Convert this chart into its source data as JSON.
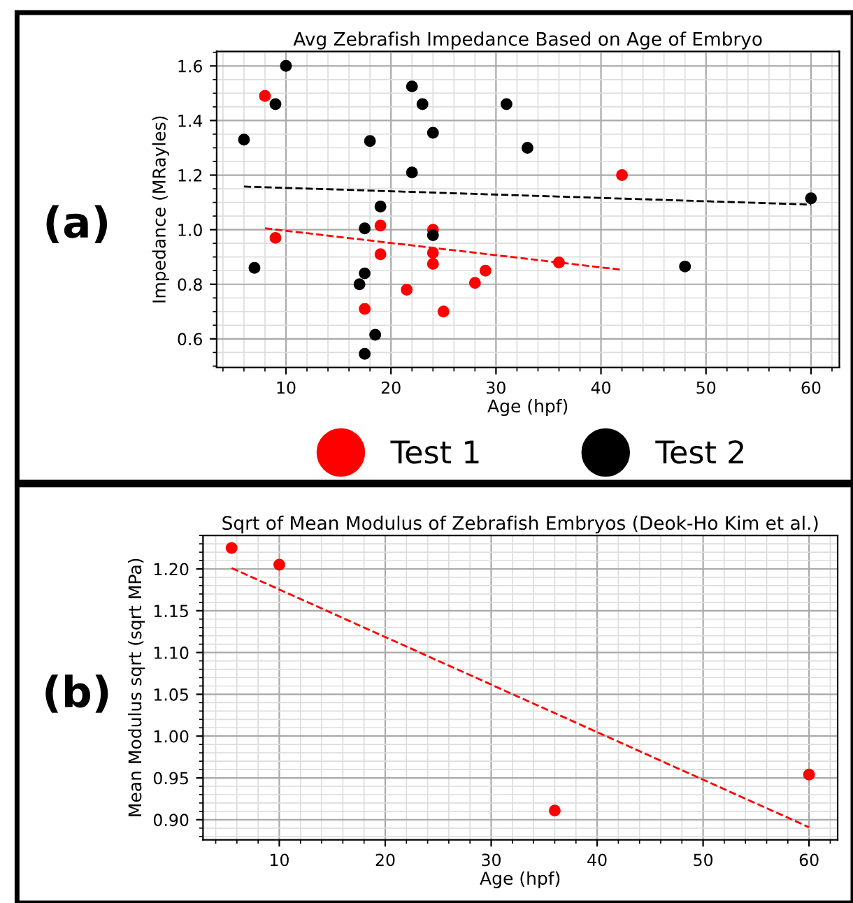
{
  "chart_data": [
    {
      "type": "scatter",
      "title": "Avg Zebrafish Impedance Based on Age of Embryo",
      "xlabel": "Age (hpf)",
      "ylabel": "Impedance (MRayles)",
      "annotations": [
        "(a)"
      ],
      "xlim": [
        3.4,
        62.7
      ],
      "ylim": [
        0.495,
        1.653
      ],
      "xticks": [
        10,
        20,
        30,
        40,
        50,
        60
      ],
      "yticks": [
        0.6,
        0.8,
        {
          "value": 1.0,
          "label": "1.0"
        },
        1.2,
        1.4,
        1.6
      ],
      "grid": true,
      "legend": "bottom",
      "series": [
        {
          "name": "Test 1",
          "color": "#ff0000",
          "marker": "circle",
          "x": [
            8,
            9,
            17.5,
            19,
            19,
            21.5,
            24,
            24,
            24,
            25,
            28,
            29,
            36,
            42
          ],
          "values": [
            1.49,
            0.97,
            0.71,
            1.015,
            0.91,
            0.78,
            1.0,
            0.915,
            0.875,
            0.7,
            0.805,
            0.85,
            0.88,
            1.2
          ]
        },
        {
          "name": "Test 2",
          "color": "#000000",
          "marker": "circle",
          "x": [
            6,
            7,
            9,
            10,
            17,
            17.5,
            17.5,
            17.5,
            18,
            18.5,
            19,
            22,
            22,
            23,
            24,
            24,
            31,
            33,
            48,
            60
          ],
          "values": [
            1.33,
            0.86,
            1.46,
            1.6,
            0.8,
            1.005,
            0.84,
            0.545,
            1.325,
            0.615,
            1.085,
            1.525,
            1.21,
            1.46,
            1.355,
            0.98,
            1.46,
            1.3,
            0.865,
            1.115
          ]
        },
        {
          "type": "line",
          "color": "#ff0000",
          "line_style": "dashed",
          "x": [
            8,
            42
          ],
          "values": [
            1.005,
            0.853
          ],
          "marker": "none"
        },
        {
          "type": "line",
          "color": "#000000",
          "line_style": "dashed",
          "x": [
            6,
            60
          ],
          "values": [
            1.158,
            1.092
          ],
          "marker": "none"
        }
      ]
    },
    {
      "type": "scatter",
      "title": "Sqrt of Mean Modulus of Zebrafish Embryos (Deok-Ho Kim et al.)",
      "xlabel": "Age (hpf)",
      "ylabel": "Mean Modulus sqrt (sqrt MPa)",
      "annotations": [
        "(b)"
      ],
      "xlim": [
        2.8,
        62.7
      ],
      "ylim": [
        0.876,
        1.24
      ],
      "xticks": [
        10,
        20,
        30,
        40,
        50,
        60
      ],
      "yticks": [
        {
          "value": 0.9,
          "label": "0.90"
        },
        {
          "value": 0.95,
          "label": "0.95"
        },
        {
          "value": 1.0,
          "label": "1.00"
        },
        {
          "value": 1.05,
          "label": "1.05"
        },
        {
          "value": 1.1,
          "label": "1.10"
        },
        {
          "value": 1.15,
          "label": "1.15"
        },
        {
          "value": 1.2,
          "label": "1.20"
        }
      ],
      "grid": true,
      "series": [
        {
          "color": "#ff0000",
          "marker": "circle",
          "x": [
            5.5,
            10,
            36,
            60
          ],
          "values": [
            1.225,
            1.205,
            0.911,
            0.954
          ]
        },
        {
          "type": "line",
          "color": "#ff0000",
          "line_style": "dashed",
          "x": [
            5.5,
            60
          ],
          "values": [
            1.201,
            0.891
          ],
          "marker": "none"
        }
      ]
    }
  ]
}
